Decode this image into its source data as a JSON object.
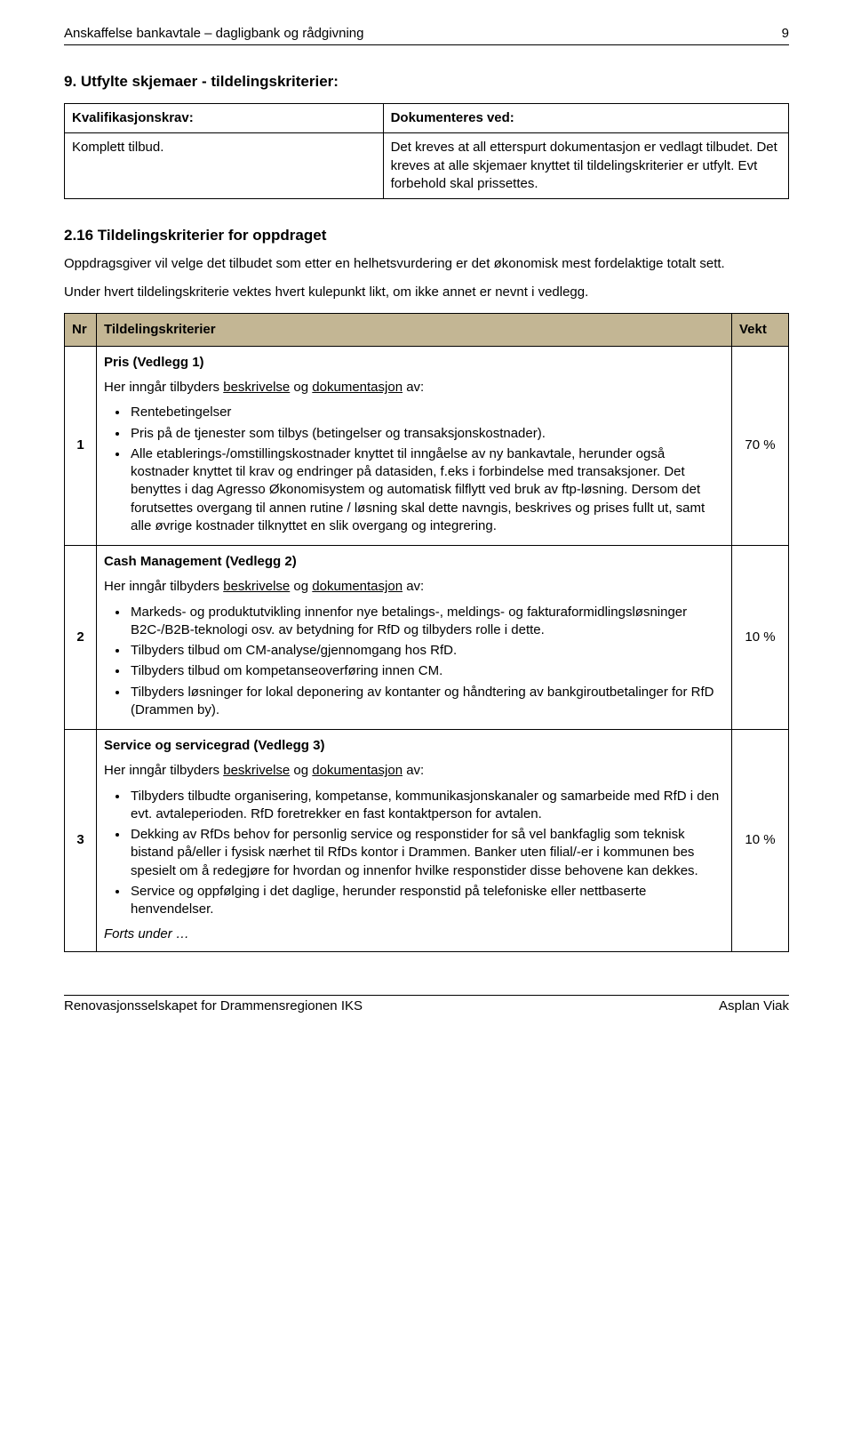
{
  "header": {
    "title": "Anskaffelse bankavtale – dagligbank og rådgivning",
    "page_number": "9"
  },
  "section9": {
    "heading": "9. Utfylte skjemaer - tildelingskriterier:",
    "col1_header": "Kvalifikasjonskrav:",
    "col2_header": "Dokumenteres ved:",
    "col1_value": "Komplett tilbud.",
    "col2_value": "Det kreves at all etterspurt dokumentasjon er vedlagt tilbudet. Det kreves at alle skjemaer knyttet til tildelingskriterier er utfylt. Evt forbehold skal prissettes."
  },
  "section216": {
    "heading": "2.16  Tildelingskriterier for oppdraget",
    "p1": "Oppdragsgiver vil velge det tilbudet som etter en helhetsvurdering er det økonomisk mest fordelaktige totalt sett.",
    "p2": "Under hvert tildelingskriterie vektes hvert kulepunkt likt, om ikke annet er nevnt i vedlegg."
  },
  "criteria_table": {
    "headers": {
      "nr": "Nr",
      "krit": "Tildelingskriterier",
      "vekt": "Vekt"
    },
    "header_bg": "#c3b694",
    "rows": [
      {
        "nr": "1",
        "title": "Pris (Vedlegg 1)",
        "intro_pre": "Her inngår tilbyders ",
        "intro_u1": "beskrivelse",
        "intro_mid": " og ",
        "intro_u2": "dokumentasjon",
        "intro_post": " av:",
        "bullets": [
          "Rentebetingelser",
          "Pris på de tjenester som tilbys (betingelser og transaksjonskostnader).",
          "Alle etablerings-/omstillingskostnader knyttet til inngåelse av ny bankavtale, herunder også kostnader knyttet til krav og endringer på datasiden, f.eks i forbindelse med transaksjoner. Det benyttes i dag Agresso Økonomisystem og automatisk filflytt ved bruk av ftp-løsning. Dersom det forutsettes overgang til annen rutine / løsning skal dette navngis, beskrives og prises fullt ut, samt alle øvrige kostnader tilknyttet en slik overgang og integrering."
        ],
        "vekt": "70 %"
      },
      {
        "nr": "2",
        "title": "Cash Management (Vedlegg 2)",
        "intro_pre": "Her inngår tilbyders ",
        "intro_u1": "beskrivelse",
        "intro_mid": " og ",
        "intro_u2": "dokumentasjon",
        "intro_post": " av:",
        "bullets": [
          "Markeds- og produktutvikling innenfor nye betalings-, meldings- og fakturaformidlingsløsninger B2C-/B2B-teknologi osv. av betydning for RfD og tilbyders rolle i dette.",
          "Tilbyders tilbud om CM-analyse/gjennomgang hos RfD.",
          "Tilbyders tilbud om kompetanseoverføring innen CM.",
          "Tilbyders løsninger for lokal deponering av kontanter og håndtering av bankgiroutbetalinger for RfD (Drammen by)."
        ],
        "vekt": "10 %"
      },
      {
        "nr": "3",
        "title": "Service og servicegrad (Vedlegg 3)",
        "intro_pre": "Her inngår tilbyders ",
        "intro_u1": "beskrivelse",
        "intro_mid": " og ",
        "intro_u2": "dokumentasjon",
        "intro_post": " av:",
        "bullets": [
          "Tilbyders tilbudte organisering, kompetanse, kommunikasjonskanaler og samarbeide med RfD i den evt. avtaleperioden. RfD foretrekker en fast kontaktperson for avtalen.",
          "Dekking av RfDs behov for personlig service og responstider for så vel bankfaglig som teknisk bistand på/eller i fysisk nærhet til RfDs kontor i Drammen. Banker uten filial/-er i kommunen bes spesielt om å redegjøre for hvordan og innenfor hvilke responstider disse behovene kan dekkes.",
          "Service og oppfølging i det daglige, herunder responstid på telefoniske eller nettbaserte henvendelser."
        ],
        "forts": "Forts under …",
        "vekt": "10 %"
      }
    ]
  },
  "footer": {
    "left": "Renovasjonsselskapet for Drammensregionen IKS",
    "right": "Asplan Viak"
  }
}
